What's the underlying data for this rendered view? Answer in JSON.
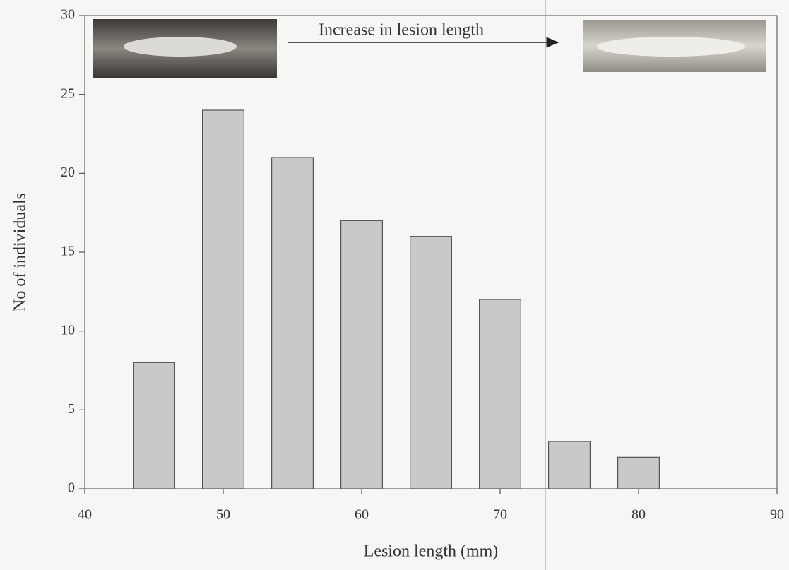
{
  "chart_data": {
    "type": "bar",
    "x": [
      45,
      50,
      55,
      60,
      65,
      70,
      75,
      80
    ],
    "values": [
      8,
      24,
      21,
      17,
      16,
      12,
      3,
      2
    ],
    "color": "#c9c9c9",
    "xlim": [
      40,
      90
    ],
    "xticks": [
      40,
      50,
      60,
      70,
      80,
      90
    ],
    "ylim": [
      0,
      30
    ],
    "yticks": [
      0,
      5,
      10,
      15,
      20,
      25,
      30
    ],
    "x_label": "Lesion length (mm)",
    "y_label": "No of individuals",
    "annotation": "Increase in lesion length"
  }
}
